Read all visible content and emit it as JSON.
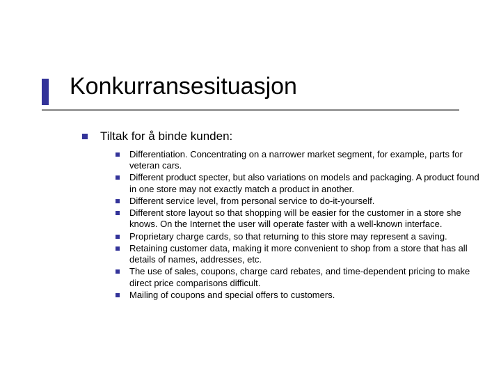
{
  "colors": {
    "accent": "#333399",
    "underline": "#808080",
    "bullet1": "#333399",
    "bullet2": "#333399",
    "title_text": "#000000",
    "body_text": "#000000",
    "background": "#ffffff"
  },
  "title": "Konkurransesituasjon",
  "level1": {
    "text": "Tiltak for å binde kunden:",
    "items": [
      "Differentiation. Concentrating on a narrower market segment, for example, parts for veteran cars.",
      "Different product specter, but also variations on models and packaging. A product found in one store may not exactly match a product in another.",
      "Different service level, from personal service to do-it-yourself.",
      "Different store layout so that shopping will be easier for the customer in a store she knows. On the Internet the user will operate faster with a well-known interface.",
      "Proprietary charge cards, so that returning to this store may represent a saving.",
      "Retaining customer data, making it more convenient to shop from a store that has all details of names, addresses, etc.",
      "The use of sales, coupons, charge card rebates, and time-dependent pricing to make direct price comparisons difficult.",
      "Mailing of coupons and special offers to customers."
    ]
  }
}
